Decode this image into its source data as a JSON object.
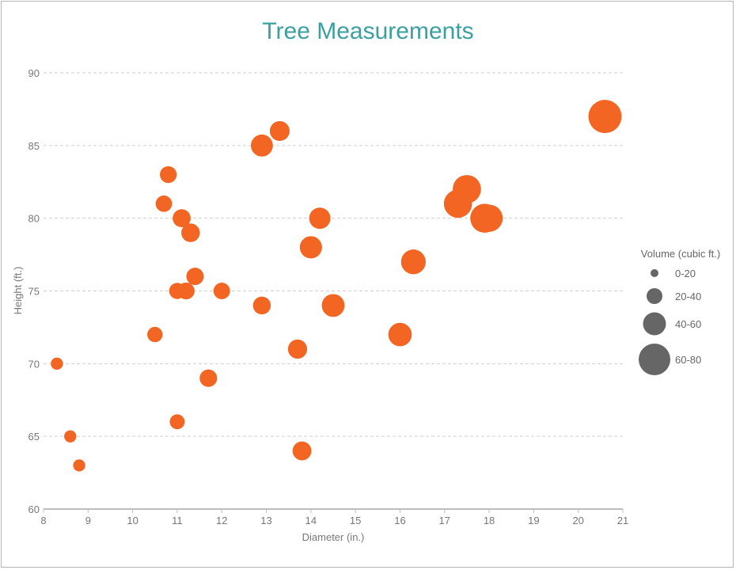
{
  "chart_data": {
    "type": "scatter",
    "subtype": "bubble",
    "title": "Tree Measurements",
    "title_color": "#3aa0a0",
    "xlabel": "Diameter (in.)",
    "ylabel": "Height (ft.)",
    "xlim": [
      8,
      21
    ],
    "ylim": [
      60,
      90
    ],
    "x_ticks": [
      "8",
      "9",
      "10",
      "11",
      "12",
      "13",
      "14",
      "15",
      "16",
      "17",
      "18",
      "19",
      "20",
      "21"
    ],
    "y_ticks": [
      "60",
      "65",
      "70",
      "75",
      "80",
      "85",
      "90"
    ],
    "grid": "horizontal dashed",
    "bubble_color": "#f26522",
    "legend": {
      "title": "Volume (cubic ft.)",
      "position": "right",
      "color": "#666666",
      "items": [
        {
          "label": "0-20",
          "size_class": 1
        },
        {
          "label": "20-40",
          "size_class": 2
        },
        {
          "label": "40-60",
          "size_class": 3
        },
        {
          "label": "60-80",
          "size_class": 4
        }
      ]
    },
    "series": [
      {
        "points": [
          {
            "x": 8.3,
            "y": 70,
            "volume": 10.3
          },
          {
            "x": 8.6,
            "y": 65,
            "volume": 10.3
          },
          {
            "x": 8.8,
            "y": 63,
            "volume": 10.2
          },
          {
            "x": 10.5,
            "y": 72,
            "volume": 16.4
          },
          {
            "x": 10.7,
            "y": 81,
            "volume": 18.8
          },
          {
            "x": 10.8,
            "y": 83,
            "volume": 19.7
          },
          {
            "x": 11.0,
            "y": 66,
            "volume": 15.6
          },
          {
            "x": 11.0,
            "y": 75,
            "volume": 18.2
          },
          {
            "x": 11.1,
            "y": 80,
            "volume": 22.6
          },
          {
            "x": 11.2,
            "y": 75,
            "volume": 19.9
          },
          {
            "x": 11.3,
            "y": 79,
            "volume": 24.2
          },
          {
            "x": 11.4,
            "y": 76,
            "volume": 21.0
          },
          {
            "x": 11.7,
            "y": 69,
            "volume": 21.3
          },
          {
            "x": 12.0,
            "y": 75,
            "volume": 19.1
          },
          {
            "x": 12.9,
            "y": 74,
            "volume": 22.2
          },
          {
            "x": 12.9,
            "y": 85,
            "volume": 33.8
          },
          {
            "x": 13.3,
            "y": 86,
            "volume": 27.4
          },
          {
            "x": 13.7,
            "y": 71,
            "volume": 25.7
          },
          {
            "x": 13.8,
            "y": 64,
            "volume": 24.9
          },
          {
            "x": 14.0,
            "y": 78,
            "volume": 34.5
          },
          {
            "x": 14.2,
            "y": 80,
            "volume": 31.7
          },
          {
            "x": 14.5,
            "y": 74,
            "volume": 36.3
          },
          {
            "x": 16.0,
            "y": 72,
            "volume": 38.3
          },
          {
            "x": 16.3,
            "y": 77,
            "volume": 42.6
          },
          {
            "x": 17.3,
            "y": 81,
            "volume": 55.4
          },
          {
            "x": 17.5,
            "y": 82,
            "volume": 55.7
          },
          {
            "x": 17.9,
            "y": 80,
            "volume": 58.3
          },
          {
            "x": 18.0,
            "y": 80,
            "volume": 51.5
          },
          {
            "x": 20.6,
            "y": 87,
            "volume": 77.0
          }
        ]
      }
    ]
  }
}
